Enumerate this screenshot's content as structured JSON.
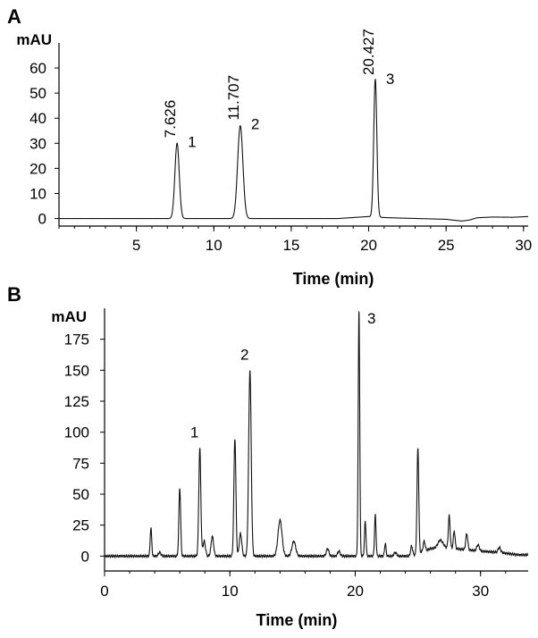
{
  "chart_data": [
    {
      "panel": "A",
      "type": "line",
      "ylabel": "mAU",
      "xlabel": "Time (min)",
      "xlim": [
        0,
        30.3
      ],
      "ylim": [
        -3,
        70
      ],
      "xticks": [
        5,
        10,
        15,
        20,
        25,
        30
      ],
      "yticks": [
        0,
        10,
        20,
        30,
        40,
        50,
        60
      ],
      "peaks": [
        {
          "number": "1",
          "rt": 7.626,
          "rt_label": "7.626",
          "height": 30,
          "width": 0.14
        },
        {
          "number": "2",
          "rt": 11.707,
          "rt_label": "11.707",
          "height": 37,
          "width": 0.17
        },
        {
          "number": "3",
          "rt": 20.427,
          "rt_label": "20.427",
          "height": 55,
          "width": 0.1
        }
      ],
      "baseline": [
        [
          0,
          0
        ],
        [
          18,
          0
        ],
        [
          19,
          0.4
        ],
        [
          20,
          0.8
        ],
        [
          21,
          0.4
        ],
        [
          22,
          0.2
        ],
        [
          25,
          -0.3
        ],
        [
          26,
          -1
        ],
        [
          26.5,
          -0.6
        ],
        [
          27,
          0.3
        ],
        [
          28,
          0.6
        ],
        [
          29.3,
          0.5
        ],
        [
          30.3,
          0.8
        ]
      ]
    },
    {
      "panel": "B",
      "type": "line",
      "ylabel": "mAU",
      "xlabel": "Time (min)",
      "xlim": [
        0,
        33.8
      ],
      "ylim": [
        -12,
        200
      ],
      "xticks": [
        0,
        10,
        20,
        30
      ],
      "yticks": [
        0,
        25,
        50,
        75,
        100,
        125,
        150,
        175
      ],
      "peaks": [
        {
          "rt": 3.7,
          "height": 23,
          "width": 0.06
        },
        {
          "rt": 4.4,
          "height": 3,
          "width": 0.1
        },
        {
          "rt": 6.0,
          "height": 55,
          "width": 0.07
        },
        {
          "number": "1",
          "rt": 7.6,
          "height": 87,
          "width": 0.08
        },
        {
          "rt": 7.95,
          "height": 12,
          "width": 0.1
        },
        {
          "rt": 8.6,
          "height": 16,
          "width": 0.1
        },
        {
          "rt": 10.4,
          "height": 95,
          "width": 0.08
        },
        {
          "rt": 10.85,
          "height": 18,
          "width": 0.1
        },
        {
          "number": "2",
          "rt": 11.6,
          "height": 150,
          "width": 0.1
        },
        {
          "rt": 14.0,
          "height": 29,
          "width": 0.16
        },
        {
          "rt": 15.1,
          "height": 12,
          "width": 0.15
        },
        {
          "rt": 17.8,
          "height": 6,
          "width": 0.1
        },
        {
          "rt": 18.7,
          "height": 4,
          "width": 0.1
        },
        {
          "number": "3",
          "rt": 20.3,
          "height": 198,
          "width": 0.06
        },
        {
          "rt": 20.8,
          "height": 28,
          "width": 0.06
        },
        {
          "rt": 21.6,
          "height": 33,
          "width": 0.06
        },
        {
          "rt": 22.4,
          "height": 10,
          "width": 0.06
        },
        {
          "rt": 23.2,
          "height": 3,
          "width": 0.1
        },
        {
          "rt": 24.5,
          "height": 8,
          "width": 0.08
        },
        {
          "rt": 25.0,
          "height": 85,
          "width": 0.07
        },
        {
          "rt": 25.5,
          "height": 8,
          "width": 0.08
        },
        {
          "rt": 26.8,
          "height": 6,
          "width": 0.2
        },
        {
          "rt": 27.5,
          "height": 26,
          "width": 0.07
        },
        {
          "rt": 27.9,
          "height": 14,
          "width": 0.07
        },
        {
          "rt": 28.9,
          "height": 13,
          "width": 0.08
        },
        {
          "rt": 29.8,
          "height": 5,
          "width": 0.1
        },
        {
          "rt": 31.5,
          "height": 4,
          "width": 0.1
        }
      ],
      "baseline": [
        [
          0,
          0
        ],
        [
          24.5,
          0
        ],
        [
          26,
          6
        ],
        [
          27,
          7
        ],
        [
          28,
          6
        ],
        [
          30,
          4
        ],
        [
          31.5,
          3
        ],
        [
          33,
          1
        ],
        [
          33.8,
          1
        ]
      ]
    }
  ]
}
